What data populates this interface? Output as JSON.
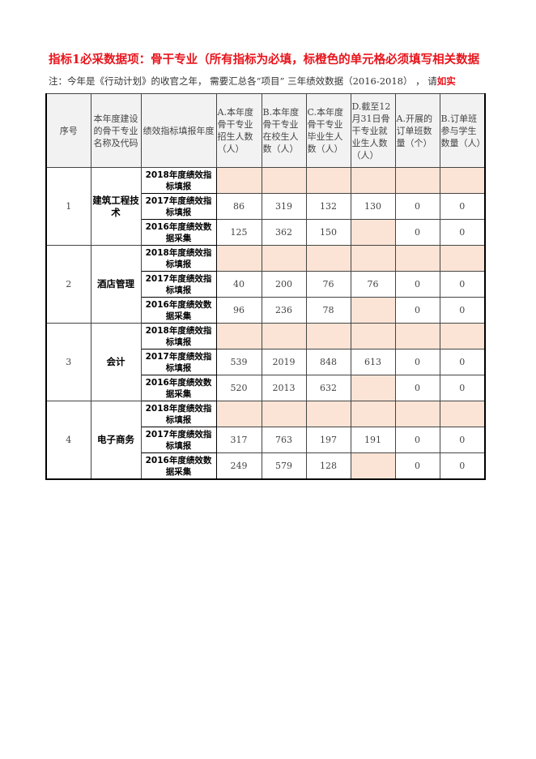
{
  "title": "指标1必采数据项：骨干专业（所有指标为必填，标橙色的单元格必须填写相关数据",
  "note": {
    "text": "注：今年是《行动计划》的收官之年， 需要汇总各“项目” 三年绩效数据（2016-2018） ， 请",
    "highlight": "如实"
  },
  "colors": {
    "title": "#e8141c",
    "required_cell": "#fbe4d5",
    "header_bg": "#f2f2f2"
  },
  "headers": [
    "序号",
    "本年度建设的骨干专业名称及代码",
    "绩效指标填报年度",
    "A.本年度骨干专业招生人数（人）",
    "B.本年度骨干专业在校生人数（人）",
    "C.本年度骨干专业毕业生人数（人）",
    "D.截至12月31日骨干专业就业生人数（人）",
    "A.开展的订单班数量（个）",
    "B.订单班参与学生数量（人）"
  ],
  "groups": [
    {
      "no": "1",
      "name": "建筑工程技术",
      "rows": [
        {
          "year": "2018年度绩效指标填报",
          "values": [
            "",
            "",
            "",
            "",
            "",
            ""
          ]
        },
        {
          "year": "2017年度绩效指标填报",
          "values": [
            "86",
            "319",
            "132",
            "130",
            "0",
            "0"
          ]
        },
        {
          "year": "2016年度绩效数据采集",
          "values": [
            "125",
            "362",
            "150",
            "",
            "0",
            "0"
          ]
        }
      ]
    },
    {
      "no": "2",
      "name": "酒店管理",
      "rows": [
        {
          "year": "2018年度绩效指标填报",
          "values": [
            "",
            "",
            "",
            "",
            "",
            ""
          ]
        },
        {
          "year": "2017年度绩效指标填报",
          "values": [
            "40",
            "200",
            "76",
            "76",
            "0",
            "0"
          ]
        },
        {
          "year": "2016年度绩效数据采集",
          "values": [
            "96",
            "236",
            "78",
            "",
            "0",
            "0"
          ]
        }
      ]
    },
    {
      "no": "3",
      "name": "会计",
      "rows": [
        {
          "year": "2018年度绩效指标填报",
          "values": [
            "",
            "",
            "",
            "",
            "",
            ""
          ]
        },
        {
          "year": "2017年度绩效指标填报",
          "values": [
            "539",
            "2019",
            "848",
            "613",
            "0",
            "0"
          ]
        },
        {
          "year": "2016年度绩效数据采集",
          "values": [
            "520",
            "2013",
            "632",
            "",
            "0",
            "0"
          ]
        }
      ]
    },
    {
      "no": "4",
      "name": "电子商务",
      "rows": [
        {
          "year": "2018年度绩效指标填报",
          "values": [
            "",
            "",
            "",
            "",
            "",
            ""
          ]
        },
        {
          "year": "2017年度绩效指标填报",
          "values": [
            "317",
            "763",
            "197",
            "191",
            "0",
            "0"
          ]
        },
        {
          "year": "2016年度绩效数据采集",
          "values": [
            "249",
            "579",
            "128",
            "",
            "0",
            "0"
          ]
        }
      ]
    }
  ]
}
